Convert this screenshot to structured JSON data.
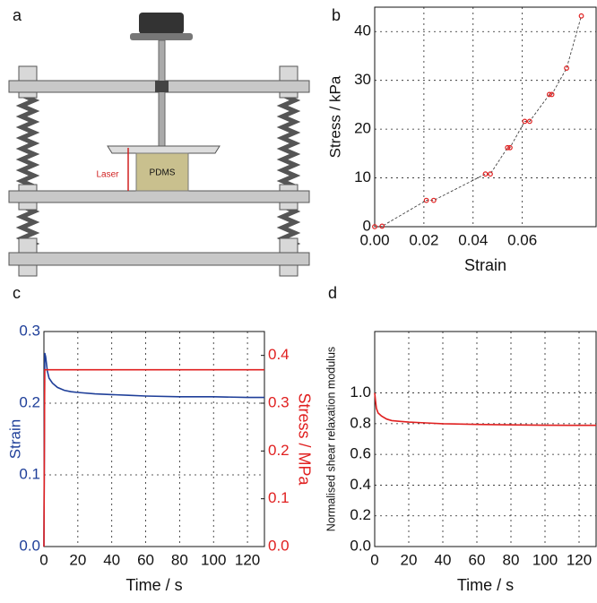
{
  "diagram": {
    "label": "a",
    "laser": "Laser",
    "sample": "PDMS"
  },
  "chart_data": [
    {
      "type": "scatter",
      "label": "b",
      "xlabel": "Strain",
      "ylabel": "Stress / kPa",
      "x": [
        0,
        0.003,
        0.021,
        0.024,
        0.045,
        0.047,
        0.054,
        0.055,
        0.061,
        0.063,
        0.071,
        0.072,
        0.078,
        0.084
      ],
      "series": [
        {
          "color": "#e02020",
          "values": [
            0,
            0.1,
            5.4,
            5.4,
            10.8,
            10.8,
            16.2,
            16.2,
            21.6,
            21.6,
            27.1,
            27.1,
            32.5,
            43.2
          ]
        }
      ],
      "line_color": "#444",
      "line_style": "dashed",
      "xlim": [
        0,
        0.09
      ],
      "ylim": [
        0,
        45
      ],
      "xticks": [
        {
          "value": 0,
          "label": "0.00"
        },
        {
          "value": 0.02,
          "label": "0.02"
        },
        {
          "value": 0.04,
          "label": "0.04"
        },
        {
          "value": 0.06,
          "label": "0.06"
        }
      ],
      "yticks": [
        0,
        10,
        20,
        30,
        40
      ],
      "grid": true
    },
    {
      "type": "line",
      "label": "c",
      "xlabel": "Time / s",
      "ylabel": "Strain",
      "y2label": "Stress / MPa",
      "x": [
        0,
        0.5,
        1,
        2,
        3,
        5,
        8,
        12,
        16,
        20,
        30,
        40,
        50,
        60,
        80,
        100,
        120,
        130
      ],
      "series": [
        {
          "color": "#1f3f99",
          "values": [
            0,
            0.27,
            0.265,
            0.245,
            0.235,
            0.228,
            0.222,
            0.218,
            0.216,
            0.215,
            0.213,
            0.212,
            0.211,
            0.21,
            0.209,
            0.209,
            0.208,
            0.208
          ]
        },
        {
          "color": "#e02020",
          "axis": "y2",
          "values": [
            0,
            0.37,
            0.37,
            0.37,
            0.37,
            0.37,
            0.37,
            0.37,
            0.37,
            0.37,
            0.37,
            0.37,
            0.37,
            0.37,
            0.37,
            0.37,
            0.37,
            0.37
          ]
        }
      ],
      "xlim": [
        0,
        130
      ],
      "ylim": [
        0,
        0.3
      ],
      "y2lim": [
        0,
        0.45
      ],
      "xticks": [
        0,
        20,
        40,
        60,
        80,
        100,
        120
      ],
      "yticks": [
        {
          "value": 0,
          "label": "0.0"
        },
        {
          "value": 0.1,
          "label": "0.1"
        },
        {
          "value": 0.2,
          "label": "0.2"
        },
        {
          "value": 0.3,
          "label": "0.3"
        }
      ],
      "y2ticks": [
        {
          "value": 0,
          "label": "0.0"
        },
        {
          "value": 0.1,
          "label": "0.1"
        },
        {
          "value": 0.2,
          "label": "0.2"
        },
        {
          "value": 0.3,
          "label": "0.3"
        },
        {
          "value": 0.4,
          "label": "0.4"
        }
      ],
      "grid": true
    },
    {
      "type": "line",
      "label": "d",
      "xlabel": "Time / s",
      "ylabel": "Normalised shear relaxation modulus",
      "x": [
        0,
        0.5,
        1,
        2,
        4,
        7,
        10,
        15,
        20,
        30,
        40,
        60,
        80,
        100,
        120,
        130
      ],
      "series": [
        {
          "color": "#e02020",
          "values": [
            1.0,
            0.95,
            0.9,
            0.87,
            0.85,
            0.83,
            0.82,
            0.815,
            0.81,
            0.805,
            0.8,
            0.795,
            0.792,
            0.79,
            0.789,
            0.789
          ]
        }
      ],
      "xlim": [
        0,
        130
      ],
      "ylim": [
        0,
        1.4
      ],
      "xticks": [
        0,
        20,
        40,
        60,
        80,
        100,
        120
      ],
      "yticks": [
        {
          "value": 0,
          "label": "0.0"
        },
        {
          "value": 0.2,
          "label": "0.2"
        },
        {
          "value": 0.4,
          "label": "0.4"
        },
        {
          "value": 0.6,
          "label": "0.6"
        },
        {
          "value": 0.8,
          "label": "0.8"
        },
        {
          "value": 1.0,
          "label": "1.0"
        }
      ],
      "grid": true
    }
  ]
}
